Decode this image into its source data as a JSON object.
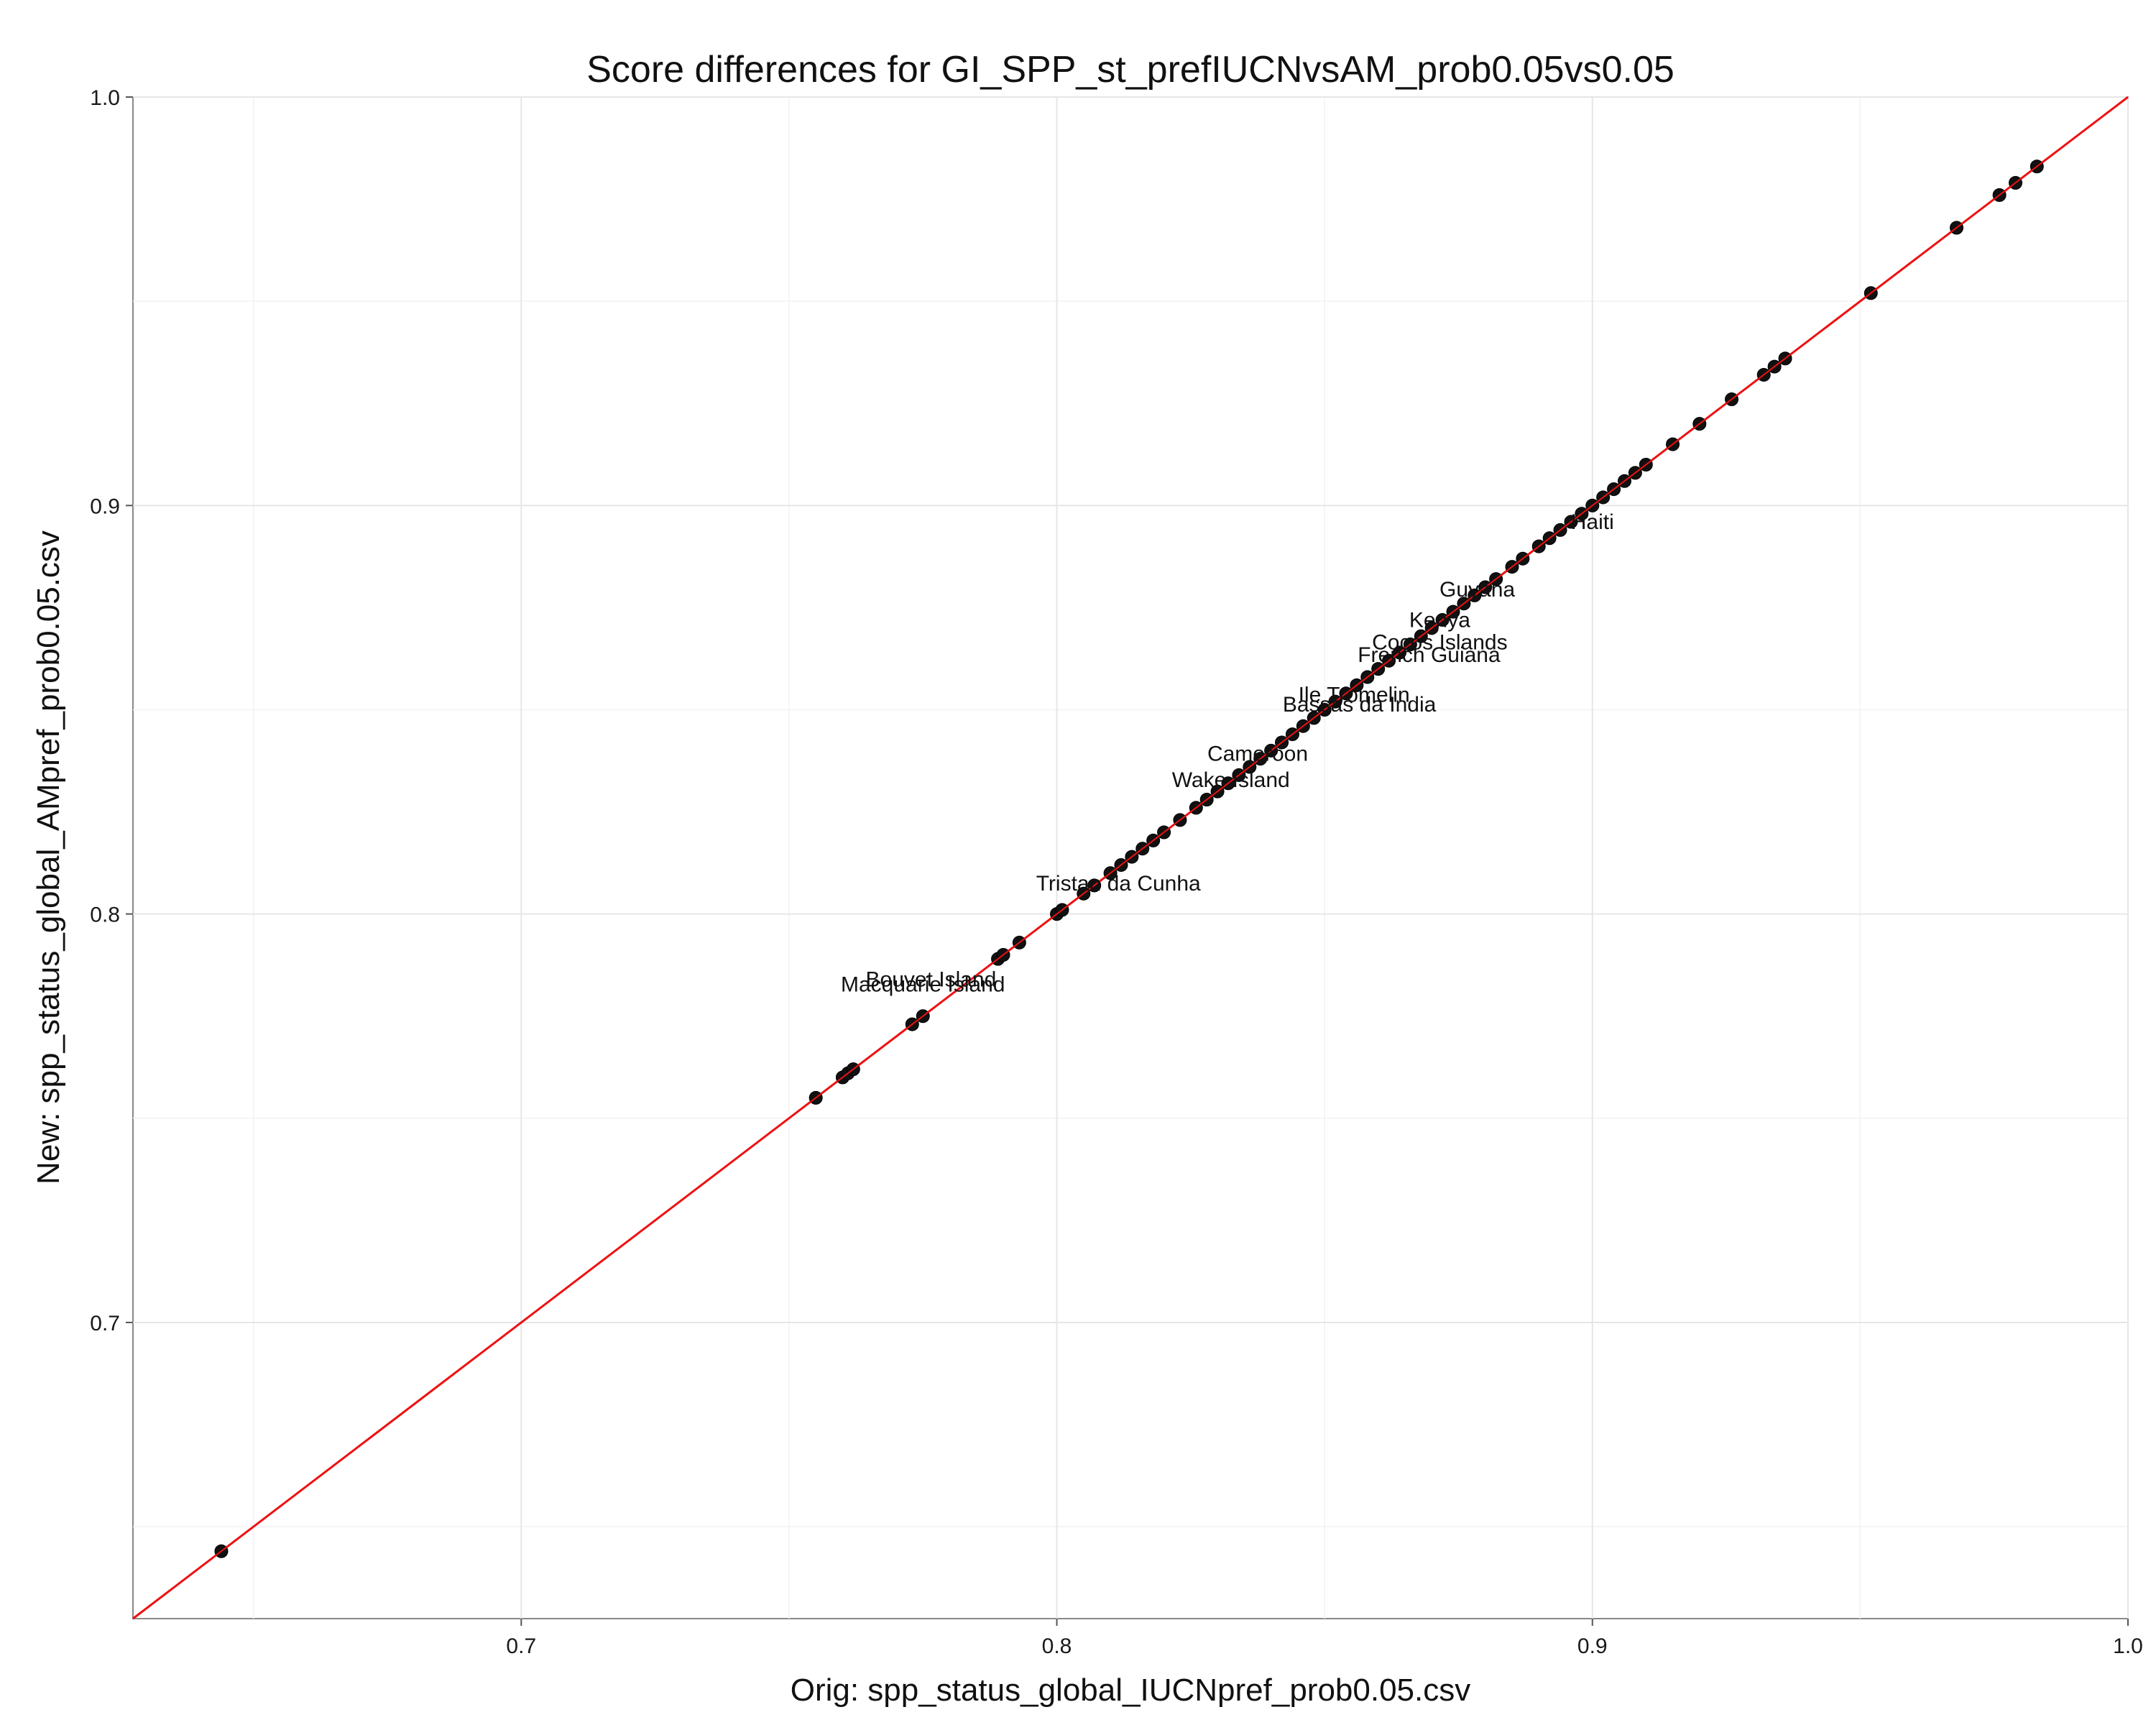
{
  "chart_data": {
    "type": "scatter",
    "title": "Score differences for GI_SPP_st_prefIUCNvsAM_prob0.05vs0.05",
    "xlabel": "Orig: spp_status_global_IUCNpref_prob0.05.csv",
    "ylabel": "New: spp_status_global_AMpref_prob0.05.csv",
    "xlim": [
      0.6275,
      1.0
    ],
    "ylim": [
      0.6275,
      1.0
    ],
    "x_ticks": [
      0.7,
      0.8,
      0.9,
      1.0
    ],
    "x_tick_labels": [
      "0.7",
      "0.8",
      "0.9",
      "1.0"
    ],
    "y_ticks": [
      0.7,
      0.8,
      0.9,
      1.0
    ],
    "y_tick_labels": [
      "0.7",
      "0.8",
      "0.9",
      "1.0"
    ],
    "grid": true,
    "legend": "none",
    "reference_line": {
      "slope": 1,
      "intercept": 0,
      "color": "#ee1111"
    },
    "point_color": "#111111",
    "points": [
      [
        0.644,
        0.644
      ],
      [
        0.755,
        0.755
      ],
      [
        0.76,
        0.76
      ],
      [
        0.761,
        0.761
      ],
      [
        0.762,
        0.762
      ],
      [
        0.773,
        0.773
      ],
      [
        0.775,
        0.775
      ],
      [
        0.789,
        0.789
      ],
      [
        0.79,
        0.79
      ],
      [
        0.793,
        0.793
      ],
      [
        0.8,
        0.8
      ],
      [
        0.801,
        0.801
      ],
      [
        0.805,
        0.805
      ],
      [
        0.807,
        0.807
      ],
      [
        0.81,
        0.81
      ],
      [
        0.812,
        0.812
      ],
      [
        0.814,
        0.814
      ],
      [
        0.816,
        0.816
      ],
      [
        0.818,
        0.818
      ],
      [
        0.82,
        0.82
      ],
      [
        0.823,
        0.823
      ],
      [
        0.826,
        0.826
      ],
      [
        0.828,
        0.828
      ],
      [
        0.83,
        0.83
      ],
      [
        0.832,
        0.832
      ],
      [
        0.834,
        0.834
      ],
      [
        0.836,
        0.836
      ],
      [
        0.838,
        0.838
      ],
      [
        0.84,
        0.84
      ],
      [
        0.842,
        0.842
      ],
      [
        0.844,
        0.844
      ],
      [
        0.846,
        0.846
      ],
      [
        0.848,
        0.848
      ],
      [
        0.85,
        0.85
      ],
      [
        0.852,
        0.852
      ],
      [
        0.854,
        0.854
      ],
      [
        0.856,
        0.856
      ],
      [
        0.858,
        0.858
      ],
      [
        0.86,
        0.86
      ],
      [
        0.862,
        0.862
      ],
      [
        0.864,
        0.864
      ],
      [
        0.866,
        0.866
      ],
      [
        0.868,
        0.868
      ],
      [
        0.87,
        0.87
      ],
      [
        0.872,
        0.872
      ],
      [
        0.874,
        0.874
      ],
      [
        0.876,
        0.876
      ],
      [
        0.878,
        0.878
      ],
      [
        0.88,
        0.88
      ],
      [
        0.882,
        0.882
      ],
      [
        0.885,
        0.885
      ],
      [
        0.887,
        0.887
      ],
      [
        0.89,
        0.89
      ],
      [
        0.892,
        0.892
      ],
      [
        0.894,
        0.894
      ],
      [
        0.896,
        0.896
      ],
      [
        0.898,
        0.898
      ],
      [
        0.9,
        0.9
      ],
      [
        0.902,
        0.902
      ],
      [
        0.904,
        0.904
      ],
      [
        0.906,
        0.906
      ],
      [
        0.908,
        0.908
      ],
      [
        0.91,
        0.91
      ],
      [
        0.915,
        0.915
      ],
      [
        0.92,
        0.92
      ],
      [
        0.926,
        0.926
      ],
      [
        0.932,
        0.932
      ],
      [
        0.934,
        0.934
      ],
      [
        0.936,
        0.936
      ],
      [
        0.952,
        0.952
      ],
      [
        0.968,
        0.968
      ],
      [
        0.976,
        0.976
      ],
      [
        0.979,
        0.979
      ],
      [
        0.983,
        0.983
      ]
    ],
    "annotations": [
      {
        "text": "Haiti",
        "x": 0.9,
        "y": 0.896
      },
      {
        "text": "Guyana",
        "x": 0.8785,
        "y": 0.8795
      },
      {
        "text": "Kenya",
        "x": 0.8715,
        "y": 0.872
      },
      {
        "text": "Cocos Islands",
        "x": 0.8715,
        "y": 0.8665
      },
      {
        "text": "French Guiana",
        "x": 0.8695,
        "y": 0.8635
      },
      {
        "text": "Ile Tromelin",
        "x": 0.8555,
        "y": 0.8537
      },
      {
        "text": "Bassas da India",
        "x": 0.8565,
        "y": 0.8513
      },
      {
        "text": "Cameroon",
        "x": 0.8375,
        "y": 0.8393
      },
      {
        "text": "Wake Island",
        "x": 0.8325,
        "y": 0.8328
      },
      {
        "text": "Tristan da Cunha",
        "x": 0.8115,
        "y": 0.8075
      },
      {
        "text": "Bouvet Island",
        "x": 0.7765,
        "y": 0.784
      },
      {
        "text": "Macquarie Island",
        "x": 0.775,
        "y": 0.7828
      }
    ]
  }
}
